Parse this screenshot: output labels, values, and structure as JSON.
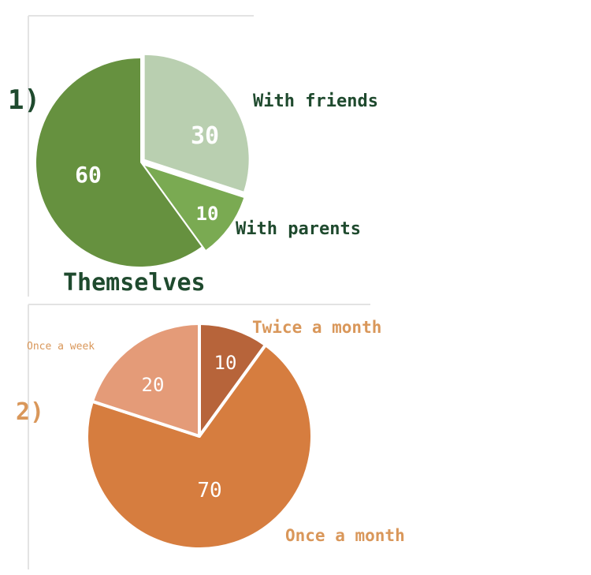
{
  "chart_data": [
    {
      "type": "pie",
      "number_label": "1)",
      "number_color": "#1f4a2e",
      "slices": [
        {
          "label": "With friends",
          "value": 30,
          "color": "#b9cfb0",
          "label_color": "#1f4a2e"
        },
        {
          "label": "With parents",
          "value": 10,
          "color": "#7aaa52",
          "label_color": "#1f4a2e"
        },
        {
          "label": "Themselves",
          "value": 60,
          "color": "#66913f",
          "label_color": "#1f4a2e"
        }
      ]
    },
    {
      "type": "pie",
      "number_label": "2)",
      "number_color": "#d9975a",
      "slices": [
        {
          "label": "Twice a month",
          "value": 10,
          "color": "#b7643a",
          "label_color": "#d9975a"
        },
        {
          "label": "Once a month",
          "value": 70,
          "color": "#d67d3f",
          "label_color": "#d9975a"
        },
        {
          "label": "Once a week",
          "value": 20,
          "color": "#e49b78",
          "label_color": "#d9975a"
        }
      ]
    }
  ]
}
